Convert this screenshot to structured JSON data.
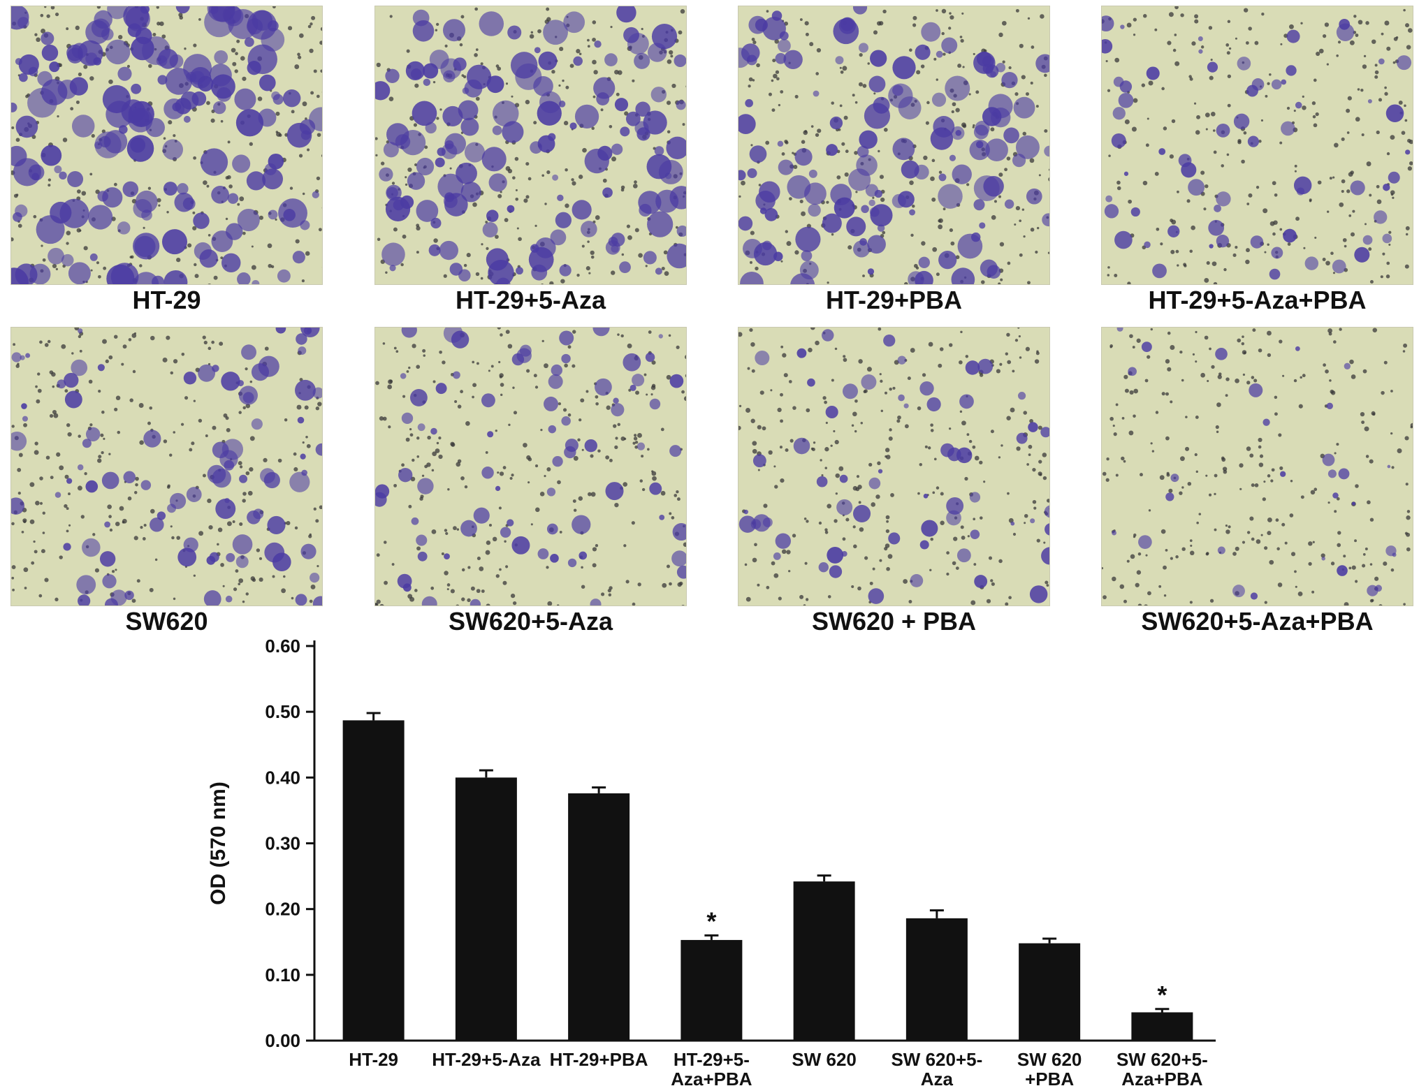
{
  "panels": [
    {
      "label": "HT-29",
      "density": 1.0
    },
    {
      "label": "HT-29+5-Aza",
      "density": 0.82
    },
    {
      "label": "HT-29+PBA",
      "density": 0.77
    },
    {
      "label": "HT-29+5-Aza+PBA",
      "density": 0.32
    },
    {
      "label": "SW620",
      "density": 0.5
    },
    {
      "label": "SW620+5-Aza",
      "density": 0.38
    },
    {
      "label": "SW620 + PBA",
      "density": 0.3
    },
    {
      "label": "SW620+5-Aza+PBA",
      "density": 0.09
    }
  ],
  "colors": {
    "background_stain": "#d9dcb6",
    "cell_stain": "#4b3ba3",
    "bar": "#111111"
  },
  "chart_data": {
    "type": "bar",
    "categories": [
      [
        "HT-29"
      ],
      [
        "HT-29+5-Aza"
      ],
      [
        "HT-29+PBA"
      ],
      [
        "HT-29+5-",
        "Aza+PBA"
      ],
      [
        "SW 620"
      ],
      [
        "SW 620+5-",
        "Aza"
      ],
      [
        "SW 620",
        "+PBA"
      ],
      [
        "SW 620+5-",
        "Aza+PBA"
      ]
    ],
    "values": [
      0.487,
      0.4,
      0.376,
      0.153,
      0.242,
      0.186,
      0.148,
      0.043
    ],
    "errors": [
      0.011,
      0.011,
      0.009,
      0.007,
      0.009,
      0.012,
      0.007,
      0.005
    ],
    "significance": [
      "",
      "",
      "",
      "*",
      "",
      "",
      "",
      "*"
    ],
    "ylabel": "OD (570 nm)",
    "yticks": [
      "0.00",
      "0.10",
      "0.20",
      "0.30",
      "0.40",
      "0.50",
      "0.60"
    ],
    "ylim": [
      0,
      0.6
    ],
    "grid": false,
    "legend": "none"
  }
}
